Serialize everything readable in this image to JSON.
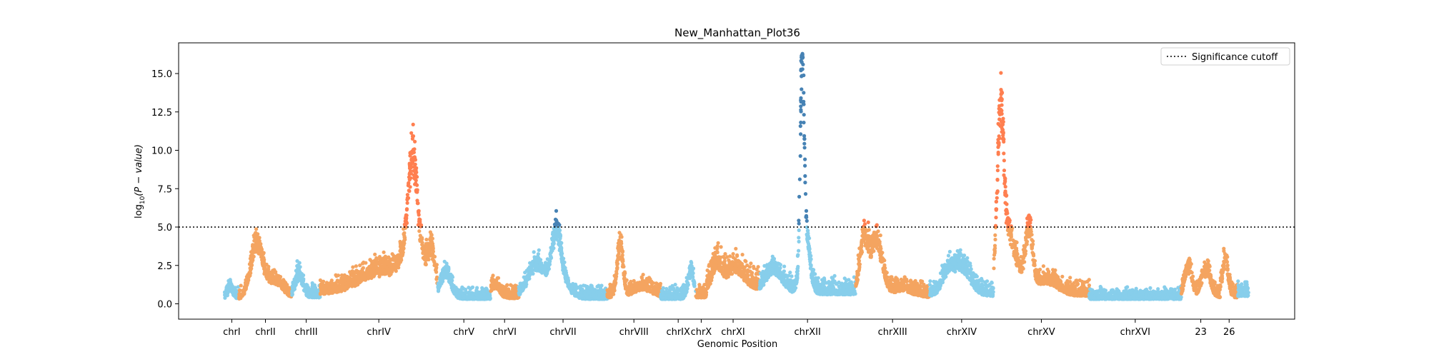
{
  "chart_data": {
    "type": "scatter",
    "title": "New_Manhattan_Plot36",
    "xlabel": "Genomic Position",
    "ylabel": "log10(P − value)",
    "ylim": [
      -1.0,
      17.0
    ],
    "yticks": [
      0.0,
      2.5,
      5.0,
      7.5,
      10.0,
      12.5,
      15.0
    ],
    "ytick_labels": [
      "0.0",
      "2.5",
      "5.0",
      "7.5",
      "10.0",
      "12.5",
      "15.0"
    ],
    "threshold": 5.0,
    "legend": {
      "label": "Significance cutoff",
      "placement": "top-right"
    },
    "colors": {
      "blue_light": "#87ceeb",
      "orange_light": "#f4a460",
      "blue_sig": "#4682b4",
      "orange_sig": "#ff7f50"
    },
    "chromosomes": [
      {
        "label": "chrI",
        "start": 0.0,
        "end": 2.0,
        "color": "blue",
        "base": 0.35,
        "noise": 0.7,
        "peaks": [
          [
            0.8,
            0.6,
            0.3
          ]
        ]
      },
      {
        "label": "chrII",
        "start": 2.0,
        "end": 9.5,
        "color": "orange",
        "base": 0.3,
        "noise": 0.6,
        "peaks": [
          [
            4.5,
            3.8,
            0.8
          ],
          [
            7.0,
            1.2,
            1.2
          ]
        ]
      },
      {
        "label": "chrIII",
        "start": 9.5,
        "end": 13.5,
        "color": "blue",
        "base": 0.4,
        "noise": 0.8,
        "peaks": [
          [
            10.5,
            1.5,
            0.5
          ]
        ]
      },
      {
        "label": "chrIV",
        "start": 13.5,
        "end": 30.0,
        "color": "orange",
        "base": 0.6,
        "noise": 0.9,
        "peaks": [
          [
            22.0,
            1.5,
            3.0
          ],
          [
            26.5,
            6.2,
            0.6
          ],
          [
            26.9,
            3.0,
            1.6
          ],
          [
            29.2,
            2.0,
            0.4
          ]
        ]
      },
      {
        "label": "chrV",
        "start": 30.0,
        "end": 37.5,
        "color": "blue",
        "base": 0.3,
        "noise": 0.6,
        "peaks": [
          [
            31.2,
            1.8,
            0.7
          ]
        ]
      },
      {
        "label": "chrVI",
        "start": 37.5,
        "end": 41.5,
        "color": "orange",
        "base": 0.35,
        "noise": 0.7,
        "peaks": [
          [
            38.2,
            0.8,
            0.6
          ]
        ]
      },
      {
        "label": "chrVII",
        "start": 41.5,
        "end": 54.0,
        "color": "blue",
        "base": 0.3,
        "noise": 0.7,
        "peaks": [
          [
            44.0,
            2.3,
            1.2
          ],
          [
            46.8,
            3.2,
            0.6
          ],
          [
            47.2,
            1.5,
            1.2
          ]
        ]
      },
      {
        "label": "chrVIII",
        "start": 54.0,
        "end": 61.5,
        "color": "orange",
        "base": 0.4,
        "noise": 0.7,
        "peaks": [
          [
            55.8,
            3.6,
            0.4
          ],
          [
            59.0,
            0.6,
            1.2
          ]
        ]
      },
      {
        "label": "chrIX",
        "start": 61.5,
        "end": 66.5,
        "color": "blue",
        "base": 0.3,
        "noise": 0.7,
        "peaks": [
          [
            65.8,
            1.8,
            0.4
          ]
        ]
      },
      {
        "label": "chrX",
        "start": 66.5,
        "end": 68.0,
        "color": "orange",
        "base": 0.4,
        "noise": 0.7,
        "peaks": []
      },
      {
        "label": "chrXI",
        "start": 68.0,
        "end": 75.5,
        "color": "orange",
        "base": 0.9,
        "noise": 1.2,
        "peaks": [
          [
            69.5,
            1.5,
            0.6
          ],
          [
            72.0,
            1.3,
            1.2
          ]
        ]
      },
      {
        "label": "chrXII",
        "start": 75.5,
        "end": 89.0,
        "color": "blue",
        "base": 0.6,
        "noise": 0.9,
        "peaks": [
          [
            77.5,
            1.6,
            1.2
          ],
          [
            81.5,
            13.5,
            0.25
          ],
          [
            81.9,
            4.5,
            0.6
          ]
        ]
      },
      {
        "label": "chrXIII",
        "start": 89.0,
        "end": 99.5,
        "color": "orange",
        "base": 0.4,
        "noise": 0.8,
        "peaks": [
          [
            90.2,
            4.0,
            0.6
          ],
          [
            92.0,
            3.8,
            0.8
          ],
          [
            95.5,
            0.5,
            1.5
          ]
        ]
      },
      {
        "label": "chrXIV",
        "start": 99.5,
        "end": 108.5,
        "color": "blue",
        "base": 0.5,
        "noise": 0.8,
        "peaks": [
          [
            104.0,
            2.0,
            1.2
          ],
          [
            102.0,
            1.3,
            0.8
          ]
        ]
      },
      {
        "label": "chrXV",
        "start": 108.5,
        "end": 122.0,
        "color": "orange",
        "base": 0.5,
        "noise": 0.8,
        "peaks": [
          [
            109.5,
            10.8,
            0.45
          ],
          [
            110.6,
            4.0,
            1.2
          ],
          [
            113.5,
            4.3,
            0.5
          ],
          [
            116.0,
            1.0,
            1.5
          ]
        ]
      },
      {
        "label": "chrXVI",
        "start": 122.0,
        "end": 135.0,
        "color": "blue",
        "base": 0.3,
        "noise": 0.6,
        "peaks": []
      },
      {
        "label": "23",
        "start": 135.0,
        "end": 140.5,
        "color": "orange",
        "base": 0.4,
        "noise": 0.7,
        "peaks": [
          [
            136.0,
            2.0,
            0.5
          ],
          [
            138.5,
            1.8,
            0.6
          ]
        ]
      },
      {
        "label": "26",
        "start": 140.5,
        "end": 143.0,
        "color": "orange",
        "base": 0.4,
        "noise": 0.8,
        "peaks": [
          [
            141.2,
            2.5,
            0.4
          ]
        ]
      },
      {
        "label": "",
        "start": 143.0,
        "end": 144.5,
        "color": "blue",
        "base": 0.5,
        "noise": 0.8,
        "peaks": []
      }
    ],
    "xlim": [
      -6.5,
      151.0
    ]
  }
}
